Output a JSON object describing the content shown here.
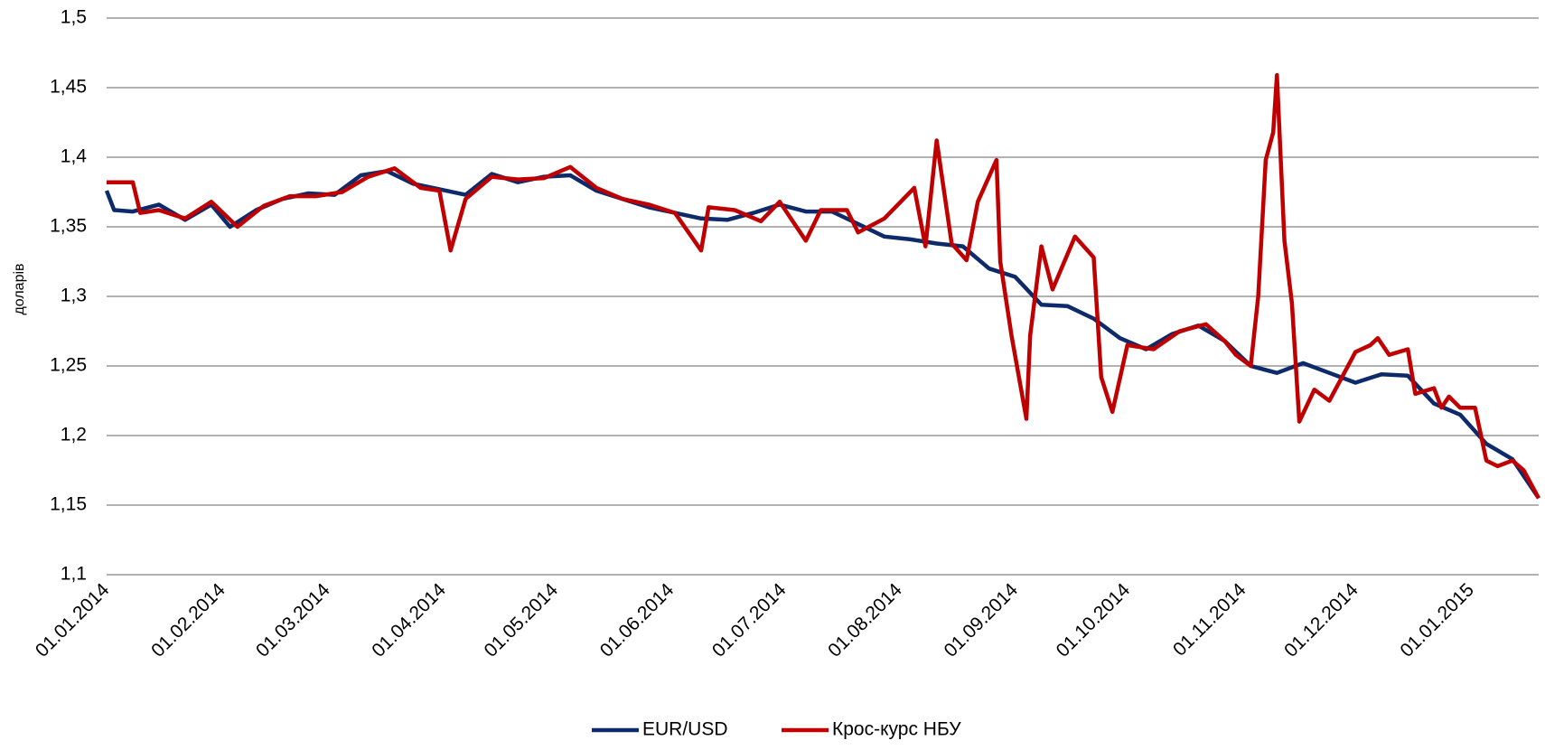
{
  "chart_data": {
    "type": "line",
    "ylabel": "доларів",
    "ylim": [
      1.1,
      1.5
    ],
    "yticks": [
      {
        "value": 1.1,
        "label": "1,1"
      },
      {
        "value": 1.15,
        "label": "1,15"
      },
      {
        "value": 1.2,
        "label": "1,2"
      },
      {
        "value": 1.25,
        "label": "1,25"
      },
      {
        "value": 1.3,
        "label": "1,3"
      },
      {
        "value": 1.35,
        "label": "1,35"
      },
      {
        "value": 1.4,
        "label": "1,4"
      },
      {
        "value": 1.45,
        "label": "1,45"
      },
      {
        "value": 1.5,
        "label": "1,5"
      }
    ],
    "xlim": [
      "01.01.2014",
      "19.01.2015"
    ],
    "xticks": [
      "01.01.2014",
      "01.02.2014",
      "01.03.2014",
      "01.04.2014",
      "01.05.2014",
      "01.06.2014",
      "01.07.2014",
      "01.08.2014",
      "01.09.2014",
      "01.10.2014",
      "01.11.2014",
      "01.12.2014",
      "01.01.2015"
    ],
    "grid": true,
    "legend": "bottom",
    "series": [
      {
        "name": "EUR/USD",
        "color": "#0d2a6b",
        "x": [
          "01.01.2014",
          "03.01.2014",
          "08.01.2014",
          "15.01.2014",
          "22.01.2014",
          "29.01.2014",
          "03.02.2014",
          "10.02.2014",
          "17.02.2014",
          "24.02.2014",
          "03.03.2014",
          "10.03.2014",
          "17.03.2014",
          "24.03.2014",
          "31.03.2014",
          "07.04.2014",
          "14.04.2014",
          "21.04.2014",
          "28.04.2014",
          "05.05.2014",
          "12.05.2014",
          "19.05.2014",
          "26.05.2014",
          "02.06.2014",
          "09.06.2014",
          "16.06.2014",
          "23.06.2014",
          "30.06.2014",
          "07.07.2014",
          "14.07.2014",
          "21.07.2014",
          "28.07.2014",
          "04.08.2014",
          "11.08.2014",
          "18.08.2014",
          "25.08.2014",
          "01.09.2014",
          "08.09.2014",
          "15.09.2014",
          "22.09.2014",
          "29.09.2014",
          "06.10.2014",
          "13.10.2014",
          "20.10.2014",
          "27.10.2014",
          "03.11.2014",
          "10.11.2014",
          "17.11.2014",
          "24.11.2014",
          "01.12.2014",
          "08.12.2014",
          "15.12.2014",
          "22.12.2014",
          "29.12.2014",
          "05.01.2015",
          "12.01.2015",
          "19.01.2015"
        ],
        "values": [
          1.376,
          1.362,
          1.361,
          1.366,
          1.355,
          1.366,
          1.35,
          1.362,
          1.37,
          1.374,
          1.373,
          1.387,
          1.39,
          1.381,
          1.377,
          1.373,
          1.388,
          1.382,
          1.386,
          1.387,
          1.376,
          1.37,
          1.364,
          1.36,
          1.356,
          1.355,
          1.36,
          1.366,
          1.361,
          1.361,
          1.352,
          1.343,
          1.341,
          1.338,
          1.336,
          1.32,
          1.314,
          1.294,
          1.293,
          1.284,
          1.27,
          1.262,
          1.273,
          1.279,
          1.268,
          1.25,
          1.245,
          1.252,
          1.245,
          1.238,
          1.244,
          1.243,
          1.223,
          1.215,
          1.194,
          1.183,
          1.155
        ]
      },
      {
        "name": "Крос-курс НБУ",
        "color": "#c00000",
        "x": [
          "01.01.2014",
          "08.01.2014",
          "10.01.2014",
          "15.01.2014",
          "22.01.2014",
          "29.01.2014",
          "05.02.2014",
          "12.02.2014",
          "19.02.2014",
          "26.02.2014",
          "05.03.2014",
          "12.03.2014",
          "19.03.2014",
          "26.03.2014",
          "31.03.2014",
          "03.04.2014",
          "07.04.2014",
          "14.04.2014",
          "21.04.2014",
          "28.04.2014",
          "05.05.2014",
          "12.05.2014",
          "19.05.2014",
          "26.05.2014",
          "02.06.2014",
          "09.06.2014",
          "11.06.2014",
          "18.06.2014",
          "25.06.2014",
          "30.06.2014",
          "07.07.2014",
          "11.07.2014",
          "18.07.2014",
          "21.07.2014",
          "28.07.2014",
          "05.08.2014",
          "08.08.2014",
          "11.08.2014",
          "15.08.2014",
          "19.08.2014",
          "22.08.2014",
          "27.08.2014",
          "28.08.2014",
          "31.08.2014",
          "04.09.2014",
          "05.09.2014",
          "08.09.2014",
          "11.09.2014",
          "17.09.2014",
          "22.09.2014",
          "24.09.2014",
          "27.09.2014",
          "01.10.2014",
          "08.10.2014",
          "15.10.2014",
          "22.10.2014",
          "27.10.2014",
          "30.10.2014",
          "03.11.2014",
          "05.11.2014",
          "07.11.2014",
          "09.11.2014",
          "10.11.2014",
          "12.11.2014",
          "14.11.2014",
          "16.11.2014",
          "20.11.2014",
          "24.11.2014",
          "27.11.2014",
          "01.12.2014",
          "05.12.2014",
          "07.12.2014",
          "10.12.2014",
          "15.12.2014",
          "17.12.2014",
          "22.12.2014",
          "24.12.2014",
          "26.12.2014",
          "29.12.2014",
          "02.01.2015",
          "05.01.2015",
          "08.01.2015",
          "12.01.2015",
          "15.01.2015",
          "19.01.2015"
        ],
        "values": [
          1.382,
          1.382,
          1.36,
          1.362,
          1.356,
          1.368,
          1.35,
          1.365,
          1.372,
          1.372,
          1.375,
          1.386,
          1.392,
          1.378,
          1.376,
          1.333,
          1.37,
          1.386,
          1.384,
          1.385,
          1.393,
          1.378,
          1.37,
          1.366,
          1.36,
          1.333,
          1.364,
          1.362,
          1.354,
          1.368,
          1.34,
          1.362,
          1.362,
          1.346,
          1.356,
          1.378,
          1.336,
          1.412,
          1.338,
          1.326,
          1.368,
          1.398,
          1.325,
          1.272,
          1.212,
          1.272,
          1.336,
          1.305,
          1.343,
          1.328,
          1.242,
          1.217,
          1.265,
          1.262,
          1.275,
          1.28,
          1.268,
          1.258,
          1.25,
          1.3,
          1.398,
          1.418,
          1.459,
          1.34,
          1.295,
          1.21,
          1.233,
          1.225,
          1.24,
          1.26,
          1.265,
          1.27,
          1.258,
          1.262,
          1.23,
          1.234,
          1.22,
          1.228,
          1.22,
          1.22,
          1.182,
          1.178,
          1.182,
          1.175,
          1.155
        ]
      }
    ]
  }
}
